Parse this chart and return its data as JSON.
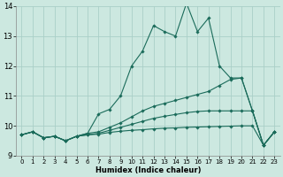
{
  "xlabel": "Humidex (Indice chaleur)",
  "bg_color": "#cce8e0",
  "line_color": "#1a6b5a",
  "grid_color": "#aacfc8",
  "xlim": [
    -0.5,
    23.5
  ],
  "ylim": [
    9,
    14
  ],
  "yticks": [
    9,
    10,
    11,
    12,
    13,
    14
  ],
  "xticks": [
    0,
    1,
    2,
    3,
    4,
    5,
    6,
    7,
    8,
    9,
    10,
    11,
    12,
    13,
    14,
    15,
    16,
    17,
    18,
    19,
    20,
    21,
    22,
    23
  ],
  "curves": [
    {
      "x": [
        0,
        1,
        2,
        3,
        4,
        5,
        6,
        7,
        8,
        9,
        10,
        11,
        12,
        13,
        14,
        15,
        16,
        17,
        18,
        19,
        20,
        21,
        22,
        23
      ],
      "y": [
        9.7,
        9.8,
        9.6,
        9.65,
        9.5,
        9.65,
        9.75,
        10.4,
        10.55,
        11.0,
        12.0,
        12.5,
        13.35,
        13.15,
        13.0,
        14.1,
        13.15,
        13.6,
        12.0,
        11.6,
        11.6,
        10.5,
        9.35,
        9.8
      ]
    },
    {
      "x": [
        0,
        1,
        2,
        3,
        4,
        5,
        6,
        7,
        8,
        9,
        10,
        11,
        12,
        13,
        14,
        15,
        16,
        17,
        18,
        19,
        20,
        21,
        22,
        23
      ],
      "y": [
        9.7,
        9.8,
        9.6,
        9.65,
        9.5,
        9.65,
        9.75,
        9.8,
        9.95,
        10.1,
        10.3,
        10.5,
        10.65,
        10.75,
        10.85,
        10.95,
        11.05,
        11.15,
        11.35,
        11.55,
        11.6,
        10.5,
        9.35,
        9.8
      ]
    },
    {
      "x": [
        0,
        1,
        2,
        3,
        4,
        5,
        6,
        7,
        8,
        9,
        10,
        11,
        12,
        13,
        14,
        15,
        16,
        17,
        18,
        19,
        20,
        21,
        22,
        23
      ],
      "y": [
        9.7,
        9.8,
        9.6,
        9.65,
        9.5,
        9.65,
        9.7,
        9.75,
        9.85,
        9.95,
        10.05,
        10.15,
        10.25,
        10.32,
        10.38,
        10.44,
        10.48,
        10.5,
        10.5,
        10.5,
        10.5,
        10.5,
        9.35,
        9.8
      ]
    },
    {
      "x": [
        0,
        1,
        2,
        3,
        4,
        5,
        6,
        7,
        8,
        9,
        10,
        11,
        12,
        13,
        14,
        15,
        16,
        17,
        18,
        19,
        20,
        21,
        22,
        23
      ],
      "y": [
        9.7,
        9.8,
        9.6,
        9.65,
        9.5,
        9.65,
        9.7,
        9.72,
        9.78,
        9.82,
        9.85,
        9.87,
        9.9,
        9.92,
        9.93,
        9.95,
        9.96,
        9.97,
        9.98,
        9.99,
        10.0,
        10.0,
        9.35,
        9.8
      ]
    }
  ]
}
